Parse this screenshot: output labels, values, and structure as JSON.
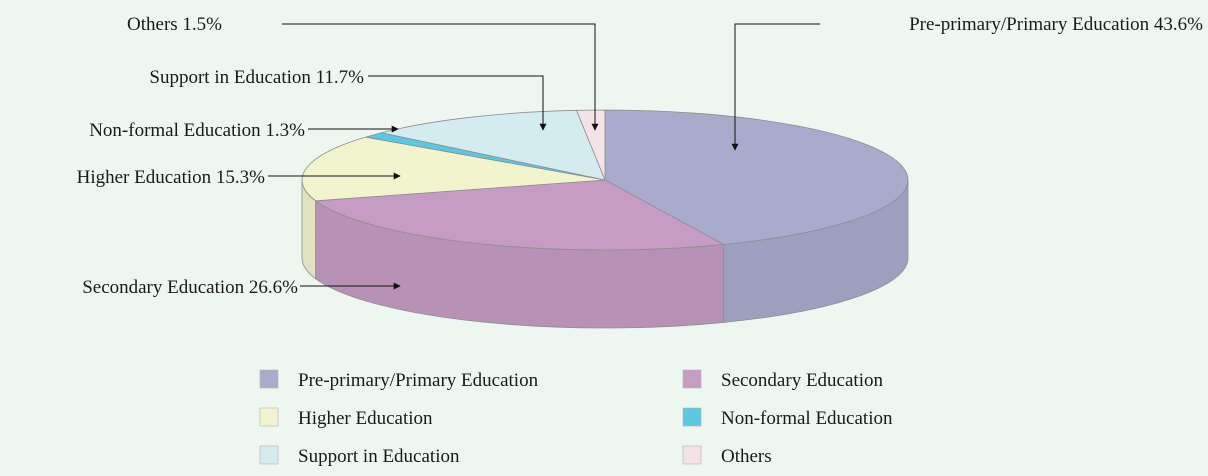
{
  "chart_data": {
    "type": "pie",
    "style": "3d",
    "legend_position": "bottom",
    "slices": [
      {
        "name": "Pre-primary/Primary Education",
        "value": 43.6,
        "label": "Pre-primary/Primary Education 43.6%",
        "color": "#a9abcd"
      },
      {
        "name": "Secondary Education",
        "value": 26.6,
        "label": "Secondary Education 26.6%",
        "color": "#c69cc4"
      },
      {
        "name": "Higher Education",
        "value": 15.3,
        "label": "Higher Education 15.3%",
        "color": "#f2f4ce"
      },
      {
        "name": "Non-formal Education",
        "value": 1.3,
        "label": "Non-formal Education 1.3%",
        "color": "#5bc8e3"
      },
      {
        "name": "Support in Education",
        "value": 11.7,
        "label": "Support in Education 11.7%",
        "color": "#d4ebef"
      },
      {
        "name": "Others",
        "value": 1.5,
        "label": "Others 1.5%",
        "color": "#f3e2e6"
      }
    ],
    "legend": [
      "Pre-primary/Primary Education",
      "Secondary Education",
      "Higher Education",
      "Non-formal Education",
      "Support in Education",
      "Others"
    ]
  }
}
